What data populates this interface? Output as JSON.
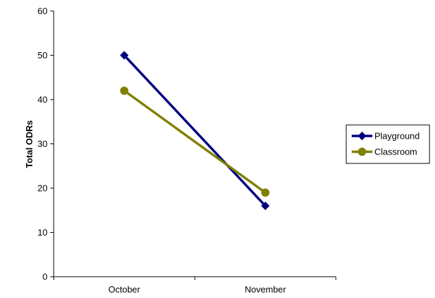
{
  "chart_data": {
    "type": "line",
    "title": "",
    "xlabel": "",
    "ylabel": "Total ODRs",
    "categories": [
      "October",
      "November"
    ],
    "ylim": [
      0,
      60
    ],
    "yticks": [
      0,
      10,
      20,
      30,
      40,
      50,
      60
    ],
    "grid": false,
    "legend_position": "right",
    "series": [
      {
        "name": "Playground",
        "values": [
          50,
          16
        ],
        "color": "#000080",
        "marker": "diamond"
      },
      {
        "name": "Classroom",
        "values": [
          42,
          19
        ],
        "color": "#808000",
        "marker": "circle"
      }
    ]
  }
}
